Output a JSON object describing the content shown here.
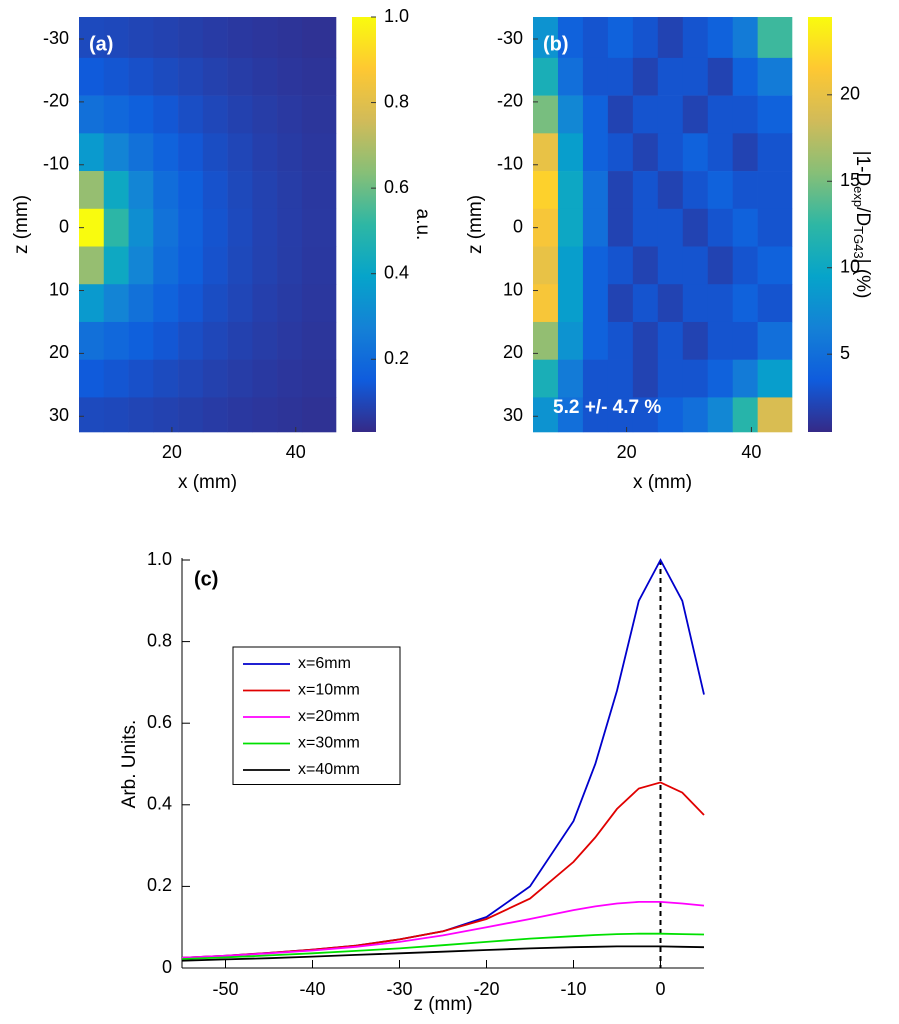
{
  "chart_data": [
    {
      "type": "heatmap",
      "title": "(a)",
      "x": [
        7,
        11,
        15,
        19,
        23,
        27,
        31,
        35,
        39,
        43
      ],
      "y": [
        -30,
        -24,
        -18,
        -12,
        -6,
        0,
        6,
        12,
        18,
        24,
        30
      ],
      "values": [
        [
          0.108,
          0.103,
          0.095,
          0.088,
          0.08,
          0.072,
          0.065,
          0.059,
          0.054,
          0.049
        ],
        [
          0.148,
          0.136,
          0.123,
          0.109,
          0.097,
          0.085,
          0.075,
          0.067,
          0.06,
          0.054
        ],
        [
          0.218,
          0.191,
          0.163,
          0.138,
          0.117,
          0.1,
          0.086,
          0.075,
          0.066,
          0.058
        ],
        [
          0.358,
          0.282,
          0.22,
          0.174,
          0.14,
          0.115,
          0.097,
          0.082,
          0.071,
          0.062
        ],
        [
          0.661,
          0.418,
          0.285,
          0.208,
          0.16,
          0.127,
          0.104,
          0.088,
          0.075,
          0.065
        ],
        [
          1.0,
          0.508,
          0.319,
          0.223,
          0.168,
          0.132,
          0.107,
          0.089,
          0.076,
          0.066
        ],
        [
          0.661,
          0.418,
          0.285,
          0.208,
          0.16,
          0.127,
          0.104,
          0.088,
          0.075,
          0.065
        ],
        [
          0.358,
          0.282,
          0.22,
          0.174,
          0.14,
          0.115,
          0.097,
          0.082,
          0.071,
          0.062
        ],
        [
          0.218,
          0.191,
          0.163,
          0.138,
          0.117,
          0.1,
          0.086,
          0.075,
          0.066,
          0.058
        ],
        [
          0.148,
          0.136,
          0.123,
          0.109,
          0.097,
          0.085,
          0.075,
          0.067,
          0.06,
          0.054
        ],
        [
          0.108,
          0.103,
          0.095,
          0.088,
          0.08,
          0.072,
          0.065,
          0.059,
          0.054,
          0.049
        ]
      ],
      "xlim": [
        5,
        46.5
      ],
      "ylim": [
        -33.5,
        32.5
      ],
      "y_reversed": true,
      "xticks": [
        20,
        40
      ],
      "yticks": [
        -30,
        -20,
        -10,
        0,
        10,
        20,
        30
      ],
      "xlabel": "x (mm)",
      "ylabel": "z (mm)",
      "colormap": [
        "#352a87",
        "#0f5cdd",
        "#1481d6",
        "#06a4ca",
        "#2eb7a4",
        "#87bf77",
        "#d1bb59",
        "#fec832",
        "#f9fb0e"
      ],
      "colorbar": {
        "lim": [
          0.03,
          1
        ],
        "ticks": [
          0.2,
          0.4,
          0.6,
          0.8,
          {
            "value": 1,
            "label": "1.0"
          }
        ],
        "label": [
          "a.u."
        ]
      }
    },
    {
      "type": "heatmap",
      "title": "(b)",
      "x": [
        7,
        11,
        15,
        19,
        23,
        27,
        31,
        35,
        39,
        43
      ],
      "y": [
        -30,
        -24,
        -18,
        -12,
        -6,
        0,
        6,
        12,
        18,
        24,
        30
      ],
      "values": [
        [
          8,
          4,
          3,
          4,
          3,
          2,
          3,
          4,
          6,
          13
        ],
        [
          11,
          5,
          3,
          3,
          2,
          3,
          3,
          2,
          4,
          6
        ],
        [
          15,
          7,
          4,
          2,
          3,
          3,
          2,
          3,
          3,
          4
        ],
        [
          20,
          9,
          4,
          3,
          2,
          3,
          4,
          3,
          2,
          3
        ],
        [
          22,
          10,
          5,
          2,
          3,
          2,
          3,
          4,
          3,
          3
        ],
        [
          21,
          10,
          5,
          2,
          3,
          3,
          2,
          3,
          4,
          3
        ],
        [
          20,
          9,
          4,
          3,
          2,
          3,
          3,
          2,
          3,
          4
        ],
        [
          21,
          9,
          4,
          2,
          3,
          2,
          3,
          3,
          4,
          3
        ],
        [
          16,
          8,
          4,
          3,
          2,
          3,
          2,
          3,
          3,
          5
        ],
        [
          11,
          6,
          3,
          3,
          2,
          3,
          3,
          4,
          6,
          9
        ],
        [
          8,
          5,
          3,
          3,
          3,
          4,
          5,
          7,
          12,
          19
        ]
      ],
      "xlim": [
        5,
        46.5
      ],
      "ylim": [
        -33.5,
        32.5
      ],
      "y_reversed": true,
      "xticks": [
        20,
        40
      ],
      "yticks": [
        -30,
        -20,
        -10,
        0,
        10,
        20,
        30
      ],
      "xlabel": "x (mm)",
      "ylabel": "z (mm)",
      "annotation": "5.2 +/- 4.7 %",
      "colormap": [
        "#352a87",
        "#0f5cdd",
        "#1481d6",
        "#06a4ca",
        "#2eb7a4",
        "#87bf77",
        "#d1bb59",
        "#fec832",
        "#f9fb0e"
      ],
      "colorbar": {
        "lim": [
          0.5,
          24.5
        ],
        "ticks": [
          5,
          10,
          15,
          20
        ],
        "label": [
          "|1-D",
          "exp",
          "/D",
          "TG43",
          "| (%)"
        ]
      }
    },
    {
      "type": "line",
      "title": "(c)",
      "x": [
        -55,
        -50,
        -45,
        -40,
        -35,
        -30,
        -25,
        -20,
        -15,
        -10,
        -7.5,
        -5,
        -2.5,
        0,
        2.5,
        5
      ],
      "series": [
        {
          "name": "x=6mm",
          "color": "#0000cc",
          "values": [
            0.025,
            0.03,
            0.037,
            0.045,
            0.055,
            0.07,
            0.09,
            0.125,
            0.2,
            0.36,
            0.5,
            0.68,
            0.9,
            1.0,
            0.9,
            0.67
          ]
        },
        {
          "name": "x=10mm",
          "color": "#e00000",
          "values": [
            0.025,
            0.03,
            0.037,
            0.045,
            0.055,
            0.07,
            0.09,
            0.12,
            0.17,
            0.26,
            0.32,
            0.39,
            0.44,
            0.455,
            0.43,
            0.375
          ]
        },
        {
          "name": "x=20mm",
          "color": "#ff00ff",
          "values": [
            0.025,
            0.03,
            0.036,
            0.043,
            0.052,
            0.064,
            0.08,
            0.1,
            0.12,
            0.142,
            0.151,
            0.158,
            0.162,
            0.162,
            0.158,
            0.153
          ]
        },
        {
          "name": "x=30mm",
          "color": "#00e000",
          "values": [
            0.022,
            0.026,
            0.031,
            0.036,
            0.042,
            0.048,
            0.056,
            0.064,
            0.072,
            0.078,
            0.081,
            0.083,
            0.084,
            0.084,
            0.083,
            0.082
          ]
        },
        {
          "name": "x=40mm",
          "color": "#000000",
          "values": [
            0.018,
            0.021,
            0.024,
            0.028,
            0.032,
            0.036,
            0.04,
            0.044,
            0.048,
            0.051,
            0.052,
            0.053,
            0.053,
            0.053,
            0.052,
            0.051
          ]
        }
      ],
      "xlim": [
        -55,
        5
      ],
      "ylim": [
        0,
        1
      ],
      "xticks": [
        -50,
        -40,
        -30,
        -20,
        -10,
        0
      ],
      "yticks": [
        0,
        0.2,
        0.4,
        0.6,
        0.8,
        {
          "value": 1,
          "label": "1.0"
        }
      ],
      "xlabel": "z (mm)",
      "ylabel": "Arb. Units.",
      "vline": 0,
      "legend": "upper left"
    }
  ]
}
